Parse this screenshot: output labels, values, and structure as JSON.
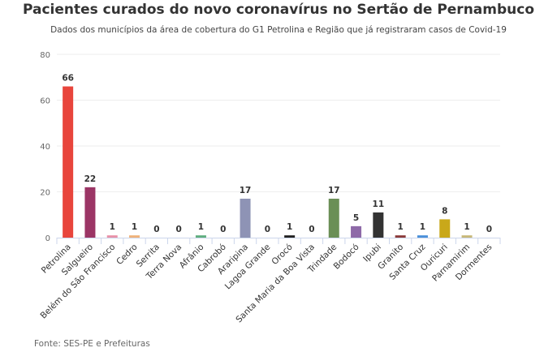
{
  "chart_data": {
    "type": "bar",
    "title": "Pacientes curados do novo coronavírus no Sertão de Pernambuco",
    "subtitle": "Dados dos municípios da área de cobertura do G1 Petrolina e Região que já registraram casos de Covid-19",
    "source": "Fonte: SES-PE e Prefeituras",
    "xlabel": "",
    "ylabel": "",
    "ylim": [
      0,
      80
    ],
    "yticks": [
      0,
      20,
      40,
      60,
      80
    ],
    "grid": true,
    "categories": [
      "Petrolina",
      "Salgueiro",
      "Belém do São Francisco",
      "Cedro",
      "Serrita",
      "Terra Nova",
      "Afrânio",
      "Cabrobó",
      "Araripina",
      "Lagoa Grande",
      "Orocó",
      "Santa Maria da Boa Vista",
      "Trindade",
      "Bodocó",
      "Ipubi",
      "Granito",
      "Santa Cruz",
      "Ouricuri",
      "Parnamirim",
      "Dormentes"
    ],
    "values": [
      66,
      22,
      1,
      1,
      0,
      0,
      1,
      0,
      17,
      0,
      1,
      0,
      17,
      5,
      11,
      1,
      1,
      8,
      1,
      0
    ],
    "colors": [
      "#e8453c",
      "#9b3565",
      "#e891a8",
      "#f0b27a",
      "#cccccc",
      "#cccccc",
      "#5fae7f",
      "#cccccc",
      "#8e93b5",
      "#cccccc",
      "#222222",
      "#cccccc",
      "#6a8f56",
      "#8e6aa8",
      "#333333",
      "#8b3a3a",
      "#4a90d9",
      "#c9a81a",
      "#c8b878",
      "#cccccc"
    ]
  }
}
